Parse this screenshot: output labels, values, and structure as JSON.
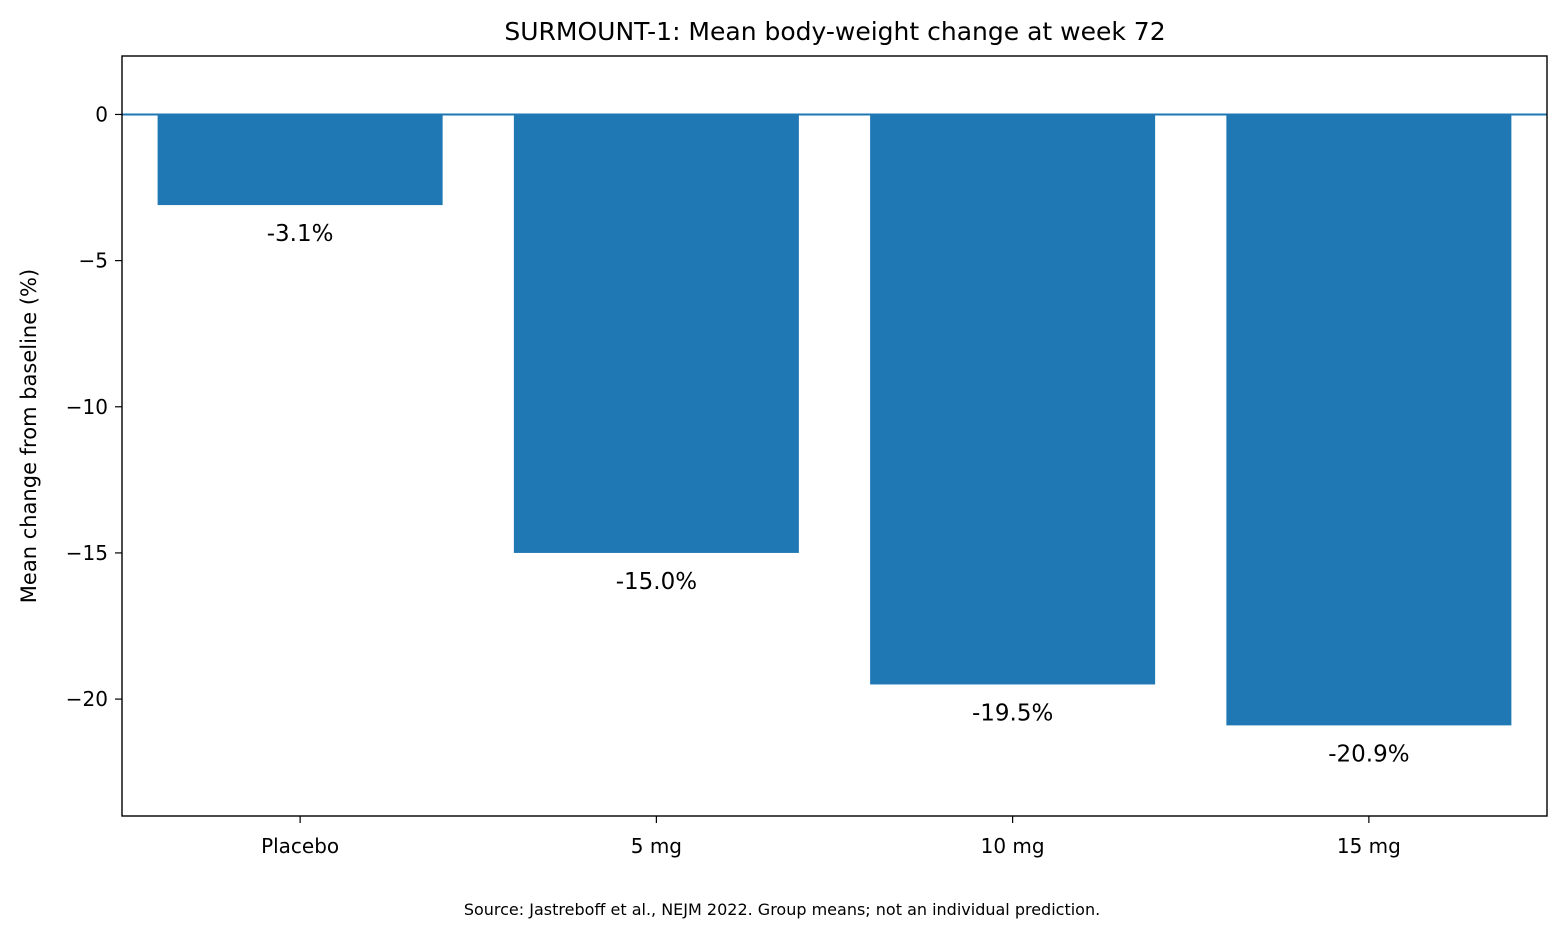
{
  "chart_data": {
    "type": "bar",
    "title": "SURMOUNT-1: Mean body-weight change at week 72",
    "xlabel": "",
    "ylabel": "Mean change from baseline (%)",
    "categories": [
      "Placebo",
      "5 mg",
      "10 mg",
      "15 mg"
    ],
    "values": [
      -3.1,
      -15.0,
      -19.5,
      -20.9
    ],
    "data_labels": [
      "-3.1%",
      "-15.0%",
      "-19.5%",
      "-20.9%"
    ],
    "ylim": [
      -24,
      2
    ],
    "yticks": [
      0,
      -5,
      -10,
      -15,
      -20
    ],
    "ytick_labels": [
      "0",
      "−5",
      "−10",
      "−15",
      "−20"
    ],
    "grid": false,
    "bar_color": "#1f77b4",
    "zero_line_color": "#1f77b4"
  },
  "source_note": "Source: Jastreboff et al., NEJM 2022. Group means; not an individual prediction."
}
